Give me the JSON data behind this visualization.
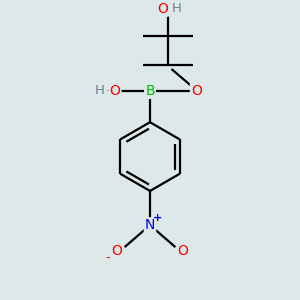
{
  "bg_color": "#dde8e8",
  "atom_colors": {
    "C": "#000000",
    "H": "#708090",
    "O": "#ff0000",
    "B": "#00bb00",
    "N": "#0000ee"
  },
  "bond_color": "#000000",
  "bond_width": 1.6,
  "figsize": [
    3.0,
    3.0
  ],
  "dpi": 100
}
